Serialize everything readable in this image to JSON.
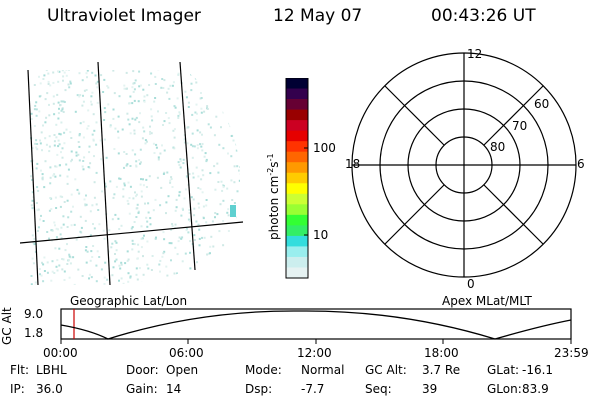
{
  "header": {
    "instrument": "Ultraviolet Imager",
    "date": "12 May 07",
    "time": "00:43:26 UT"
  },
  "colorbar": {
    "label": "photon cm",
    "label_exp1": "-2",
    "label_mid": "s",
    "label_exp2": "-1",
    "ticks": [
      "100",
      "10"
    ],
    "colors": [
      "#000033",
      "#33004d",
      "#660033",
      "#990000",
      "#cc0022",
      "#e60000",
      "#ff3300",
      "#ff6600",
      "#ff9900",
      "#ffcc00",
      "#ffff00",
      "#ccff33",
      "#99ff33",
      "#33ff33",
      "#33ee66",
      "#33dddd",
      "#99eeee",
      "#cceeee",
      "#e6f2f2"
    ]
  },
  "polar": {
    "lat_labels": [
      "60",
      "70",
      "80"
    ],
    "mlt_labels": {
      "top": "12",
      "bottom": "0",
      "left": "18",
      "right": "6"
    }
  },
  "altitude_plot": {
    "ylabel": "GC Alt",
    "yticks": [
      "9.0",
      "1.8"
    ],
    "left_title": "Geographic Lat/Lon",
    "right_title": "Apex MLat/MLT",
    "xticks": [
      "00:00",
      "06:00",
      "12:00",
      "18:00",
      "23:59"
    ]
  },
  "info_rows": [
    [
      {
        "k": "Flt:",
        "v": "LBHL"
      },
      {
        "k": "Door:",
        "v": "Open"
      },
      {
        "k": "Mode:",
        "v": "Normal"
      },
      {
        "k": "GC Alt:",
        "v": "3.7 Re"
      },
      {
        "k": "GLat:",
        "v": "-16.1"
      }
    ],
    [
      {
        "k": "IP:",
        "v": "36.0"
      },
      {
        "k": "Gain:",
        "v": "14"
      },
      {
        "k": "Dsp:",
        "v": "-7.7"
      },
      {
        "k": "Seq:",
        "v": "39"
      },
      {
        "k": "GLon:",
        "v": "83.9"
      }
    ]
  ]
}
